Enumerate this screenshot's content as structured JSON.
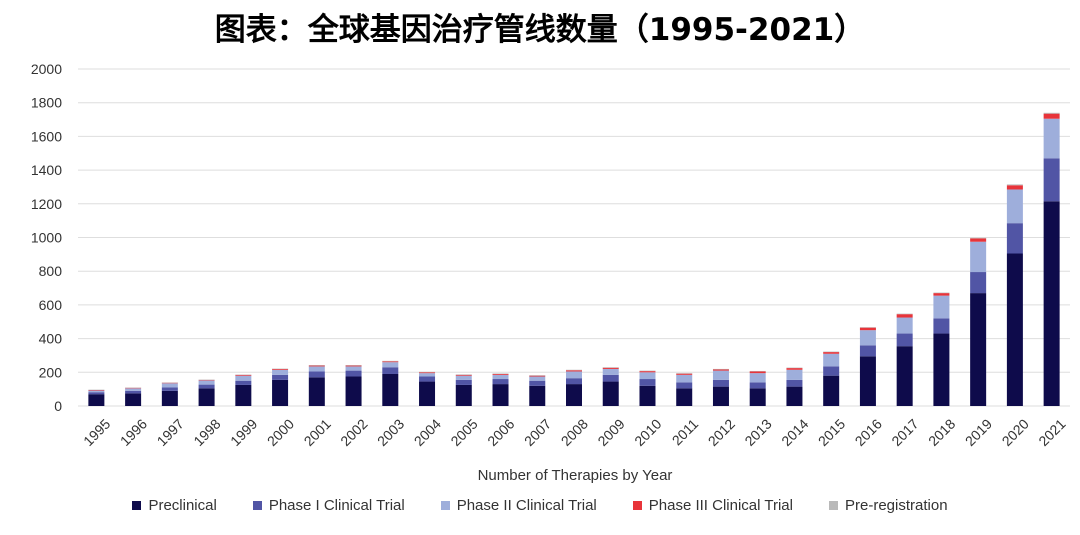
{
  "chart_data": {
    "type": "bar",
    "stacked": true,
    "title": "图表：全球基因治疗管线数量（1995-2021）",
    "xlabel": "Number of Therapies by Year",
    "ylabel": "",
    "ylim": [
      0,
      2000
    ],
    "yticks": [
      0,
      200,
      400,
      600,
      800,
      1000,
      1200,
      1400,
      1600,
      1800,
      2000
    ],
    "grid": true,
    "legend_position": "bottom",
    "categories": [
      "1995",
      "1996",
      "1997",
      "1998",
      "1999",
      "2000",
      "2001",
      "2002",
      "2003",
      "2004",
      "2005",
      "2006",
      "2007",
      "2008",
      "2009",
      "2010",
      "2011",
      "2012",
      "2013",
      "2014",
      "2015",
      "2016",
      "2017",
      "2018",
      "2019",
      "2020",
      "2021"
    ],
    "series": [
      {
        "name": "Preclinical",
        "color": "#0e0b4b",
        "values": [
          70,
          75,
          90,
          105,
          125,
          155,
          170,
          175,
          190,
          145,
          125,
          130,
          120,
          130,
          145,
          120,
          105,
          115,
          105,
          115,
          180,
          295,
          355,
          430,
          670,
          905,
          1215
        ]
      },
      {
        "name": "Phase I Clinical Trial",
        "color": "#5155a5",
        "values": [
          12,
          15,
          20,
          22,
          25,
          30,
          35,
          35,
          40,
          30,
          30,
          30,
          30,
          35,
          40,
          40,
          35,
          40,
          35,
          40,
          55,
          65,
          75,
          90,
          125,
          180,
          255
        ]
      },
      {
        "name": "Phase II Clinical Trial",
        "color": "#9eaedb",
        "values": [
          10,
          15,
          25,
          25,
          30,
          30,
          30,
          25,
          30,
          20,
          25,
          25,
          25,
          40,
          35,
          40,
          45,
          55,
          55,
          60,
          75,
          90,
          95,
          135,
          180,
          200,
          235
        ]
      },
      {
        "name": "Phase III Clinical Trial",
        "color": "#e8343a",
        "values": [
          3,
          3,
          3,
          3,
          5,
          5,
          5,
          5,
          5,
          5,
          5,
          5,
          5,
          7,
          7,
          7,
          7,
          7,
          10,
          10,
          10,
          15,
          20,
          15,
          20,
          25,
          30
        ]
      },
      {
        "name": "Pre-registration",
        "color": "#b9b9b9",
        "values": [
          2,
          2,
          2,
          2,
          2,
          2,
          3,
          3,
          3,
          3,
          3,
          3,
          3,
          3,
          3,
          3,
          3,
          3,
          3,
          3,
          3,
          3,
          3,
          3,
          3,
          5,
          5
        ]
      }
    ]
  }
}
